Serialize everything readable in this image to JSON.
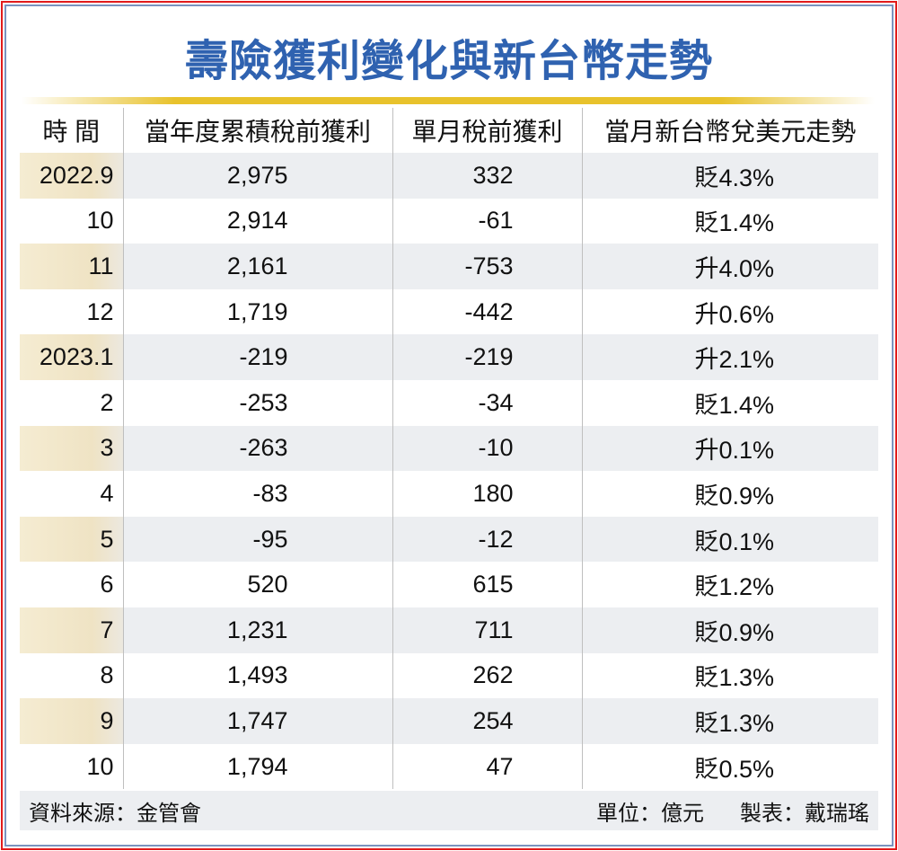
{
  "title": "壽險獲利變化與新台幣走勢",
  "chart_data": {
    "type": "table",
    "columns": [
      "時 間",
      "當年度累積稅前獲利",
      "單月稅前獲利",
      "當月新台幣兌美元走勢"
    ],
    "rows": [
      [
        "2022.9",
        "2,975",
        "332",
        "貶4.3%"
      ],
      [
        "10",
        "2,914",
        "-61",
        "貶1.4%"
      ],
      [
        "11",
        "2,161",
        "-753",
        "升4.0%"
      ],
      [
        "12",
        "1,719",
        "-442",
        "升0.6%"
      ],
      [
        "2023.1",
        "-219",
        "-219",
        "升2.1%"
      ],
      [
        "2",
        "-253",
        "-34",
        "貶1.4%"
      ],
      [
        "3",
        "-263",
        "-10",
        "升0.1%"
      ],
      [
        "4",
        "-83",
        "180",
        "貶0.9%"
      ],
      [
        "5",
        "-95",
        "-12",
        "貶0.1%"
      ],
      [
        "6",
        "520",
        "615",
        "貶1.2%"
      ],
      [
        "7",
        "1,231",
        "711",
        "貶0.9%"
      ],
      [
        "8",
        "1,493",
        "262",
        "貶1.3%"
      ],
      [
        "9",
        "1,747",
        "254",
        "貶1.3%"
      ],
      [
        "10",
        "1,794",
        "47",
        "貶0.5%"
      ]
    ]
  },
  "footer": {
    "source": "資料來源：金管會",
    "unit": "單位：億元",
    "author": "製表：戴瑞瑤"
  }
}
